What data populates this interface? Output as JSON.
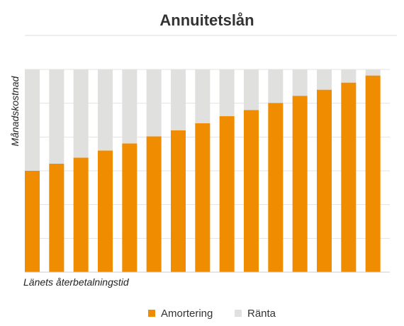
{
  "chart_data": {
    "type": "bar",
    "stacked": true,
    "title": "Annuitetslån",
    "xlabel": "Länets återbetalningstid",
    "ylabel": "Månadskostnad",
    "ylim": [
      0,
      1
    ],
    "grid": true,
    "legend_position": "bottom",
    "categories": [
      "",
      "",
      "",
      "",
      "",
      "",
      "",
      "",
      "",
      "",
      "",
      "",
      "",
      "",
      ""
    ],
    "series": [
      {
        "name": "Amortering",
        "color": "#f08c00",
        "values": [
          0.5,
          0.535,
          0.565,
          0.6,
          0.635,
          0.67,
          0.7,
          0.735,
          0.77,
          0.8,
          0.835,
          0.87,
          0.9,
          0.935,
          0.97
        ]
      },
      {
        "name": "Ränta",
        "color": "#e0e0de",
        "values": [
          0.5,
          0.465,
          0.435,
          0.4,
          0.365,
          0.33,
          0.3,
          0.265,
          0.23,
          0.2,
          0.165,
          0.13,
          0.1,
          0.065,
          0.03
        ]
      }
    ]
  }
}
